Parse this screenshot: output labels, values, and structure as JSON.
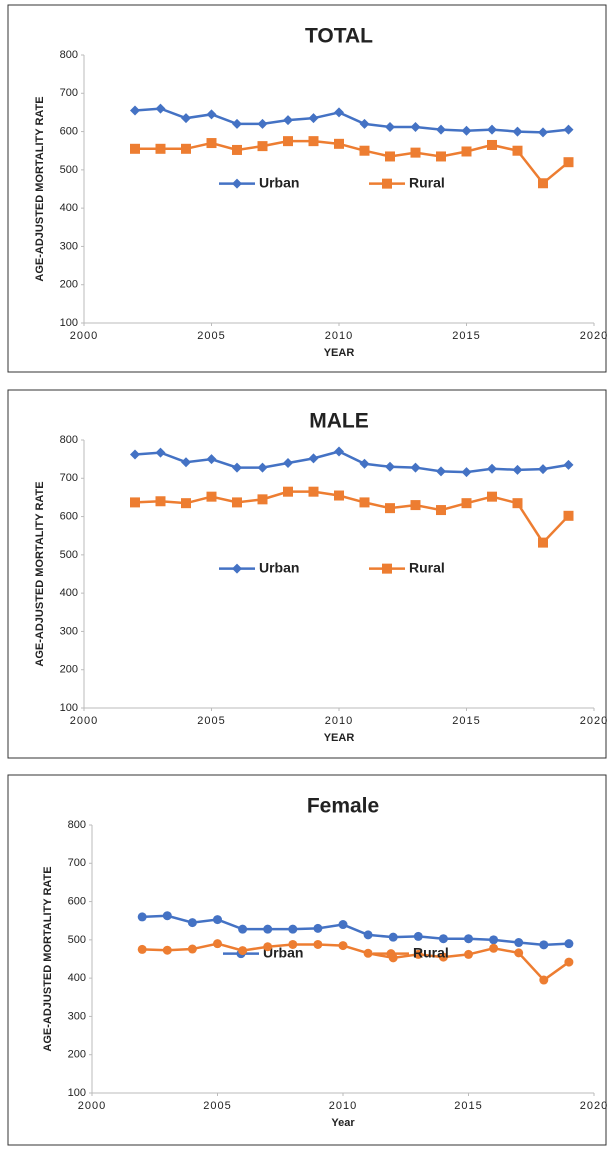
{
  "chart_data": [
    {
      "type": "line",
      "title": "TOTAL",
      "x_label": "YEAR",
      "y_label": "AGE-ADJUSTED MORTALITY RATE",
      "x": [
        2002,
        2003,
        2004,
        2005,
        2006,
        2007,
        2008,
        2009,
        2010,
        2011,
        2012,
        2013,
        2014,
        2015,
        2016,
        2017,
        2018,
        2019
      ],
      "series": [
        {
          "name": "Urban",
          "color": "#4472c4",
          "marker": "diamond",
          "values": [
            655,
            660,
            635,
            645,
            620,
            620,
            630,
            635,
            650,
            620,
            612,
            612,
            605,
            602,
            605,
            600,
            598,
            605
          ]
        },
        {
          "name": "Rural",
          "color": "#ed7d31",
          "marker": "square",
          "values": [
            555,
            555,
            555,
            570,
            552,
            562,
            575,
            575,
            568,
            550,
            535,
            545,
            535,
            548,
            565,
            550,
            465,
            520
          ]
        }
      ],
      "xlim": [
        2000,
        2020
      ],
      "xticks": [
        2000,
        2005,
        2010,
        2015,
        2020
      ],
      "ylim": [
        100,
        800
      ],
      "yticks": [
        100,
        200,
        300,
        400,
        500,
        600,
        700,
        800
      ],
      "legend": "center"
    },
    {
      "type": "line",
      "title": "MALE",
      "x_label": "YEAR",
      "y_label": "AGE-ADJUSTED MORTALITY RATE",
      "x": [
        2002,
        2003,
        2004,
        2005,
        2006,
        2007,
        2008,
        2009,
        2010,
        2011,
        2012,
        2013,
        2014,
        2015,
        2016,
        2017,
        2018,
        2019
      ],
      "series": [
        {
          "name": "Urban",
          "color": "#4472c4",
          "marker": "diamond",
          "values": [
            762,
            767,
            742,
            750,
            728,
            728,
            740,
            752,
            770,
            738,
            730,
            728,
            718,
            716,
            725,
            722,
            724,
            735
          ]
        },
        {
          "name": "Rural",
          "color": "#ed7d31",
          "marker": "square",
          "values": [
            637,
            640,
            635,
            652,
            637,
            645,
            665,
            665,
            655,
            637,
            622,
            630,
            617,
            635,
            652,
            635,
            532,
            602
          ]
        }
      ],
      "xlim": [
        2000,
        2020
      ],
      "xticks": [
        2000,
        2005,
        2010,
        2015,
        2020
      ],
      "ylim": [
        100,
        800
      ],
      "yticks": [
        100,
        200,
        300,
        400,
        500,
        600,
        700,
        800
      ],
      "legend": "center"
    },
    {
      "type": "line",
      "title": "Female",
      "x_label": "Year",
      "y_label": "AGE-ADJUSTED MORTALITY RATE",
      "x": [
        2002,
        2003,
        2004,
        2005,
        2006,
        2007,
        2008,
        2009,
        2010,
        2011,
        2012,
        2013,
        2014,
        2015,
        2016,
        2017,
        2018,
        2019
      ],
      "series": [
        {
          "name": "Urban",
          "color": "#4472c4",
          "marker": "circle",
          "values": [
            560,
            563,
            545,
            553,
            528,
            528,
            528,
            530,
            540,
            513,
            507,
            509,
            503,
            503,
            500,
            493,
            487,
            490
          ]
        },
        {
          "name": "Rural",
          "color": "#ed7d31",
          "marker": "circle",
          "values": [
            475,
            473,
            476,
            490,
            472,
            482,
            488,
            488,
            485,
            465,
            453,
            462,
            455,
            462,
            478,
            466,
            395,
            442
          ]
        }
      ],
      "xlim": [
        2000,
        2020
      ],
      "xticks": [
        2000,
        2005,
        2010,
        2015,
        2020
      ],
      "ylim": [
        100,
        800
      ],
      "yticks": [
        100,
        200,
        300,
        400,
        500,
        600,
        700,
        800
      ],
      "legend": "center"
    }
  ]
}
